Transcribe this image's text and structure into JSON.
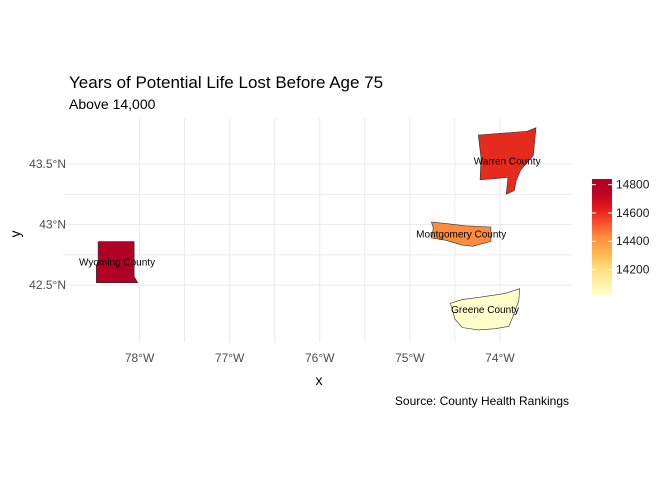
{
  "chart_data": {
    "type": "map",
    "title": "Years of Potential Life Lost Before Age 75",
    "subtitle": "Above 14,000",
    "caption": "Source: County Health Rankings",
    "xlabel": "x",
    "ylabel": "y",
    "x_ticks": [
      {
        "value": -78,
        "label": "78°W"
      },
      {
        "value": -77,
        "label": "77°W"
      },
      {
        "value": -76,
        "label": "76°W"
      },
      {
        "value": -75,
        "label": "75°W"
      },
      {
        "value": -74,
        "label": "74°W"
      }
    ],
    "y_ticks": [
      {
        "value": 43.5,
        "label": "43.5°N"
      },
      {
        "value": 43.0,
        "label": "43°N"
      },
      {
        "value": 42.5,
        "label": "42.5°N"
      }
    ],
    "xlim": [
      -78.85,
      -73.2
    ],
    "ylim": [
      42.03,
      43.88
    ],
    "grid": true,
    "legend": {
      "placement": "right",
      "min": 14020,
      "max": 14840,
      "ticks": [
        14200,
        14400,
        14600,
        14800
      ],
      "palette": [
        "#ffffcc",
        "#ffeda0",
        "#fed976",
        "#feb24c",
        "#fd8d3c",
        "#fc4e2a",
        "#e31a1c",
        "#bd0026",
        "#b10026"
      ]
    },
    "counties": [
      {
        "name": "Wyoming County",
        "value": 14840,
        "fill": "#b10026",
        "boundary": [
          [
            -78.46,
            42.86
          ],
          [
            -78.06,
            42.86
          ],
          [
            -78.06,
            42.57
          ],
          [
            -78.02,
            42.52
          ],
          [
            -78.48,
            42.52
          ],
          [
            -78.48,
            42.66
          ],
          [
            -78.46,
            42.7
          ]
        ]
      },
      {
        "name": "Warren County",
        "value": 14700,
        "fill": "#e52b1e",
        "boundary": [
          [
            -74.24,
            43.74
          ],
          [
            -73.7,
            43.77
          ],
          [
            -73.6,
            43.8
          ],
          [
            -73.63,
            43.57
          ],
          [
            -73.77,
            43.45
          ],
          [
            -73.82,
            43.36
          ],
          [
            -73.84,
            43.28
          ],
          [
            -73.93,
            43.25
          ],
          [
            -73.91,
            43.39
          ],
          [
            -74.03,
            43.38
          ],
          [
            -74.22,
            43.37
          ],
          [
            -74.21,
            43.55
          ]
        ]
      },
      {
        "name": "Montgomery County",
        "value": 14460,
        "fill": "#fd8c3c",
        "boundary": [
          [
            -74.76,
            43.02
          ],
          [
            -74.62,
            43.01
          ],
          [
            -74.5,
            43.0
          ],
          [
            -74.38,
            42.99
          ],
          [
            -74.1,
            42.98
          ],
          [
            -74.1,
            42.86
          ],
          [
            -74.21,
            42.84
          ],
          [
            -74.3,
            42.82
          ],
          [
            -74.42,
            42.83
          ],
          [
            -74.6,
            42.87
          ],
          [
            -74.76,
            42.89
          ],
          [
            -74.74,
            42.97
          ]
        ]
      },
      {
        "name": "Greene County",
        "value": 14020,
        "fill": "#ffffcc",
        "boundary": [
          [
            -74.55,
            42.35
          ],
          [
            -74.42,
            42.38
          ],
          [
            -74.22,
            42.4
          ],
          [
            -73.95,
            42.43
          ],
          [
            -73.78,
            42.47
          ],
          [
            -73.79,
            42.37
          ],
          [
            -73.85,
            42.25
          ],
          [
            -73.9,
            42.16
          ],
          [
            -74.05,
            42.14
          ],
          [
            -74.24,
            42.13
          ],
          [
            -74.42,
            42.15
          ],
          [
            -74.5,
            42.22
          ]
        ]
      }
    ]
  }
}
